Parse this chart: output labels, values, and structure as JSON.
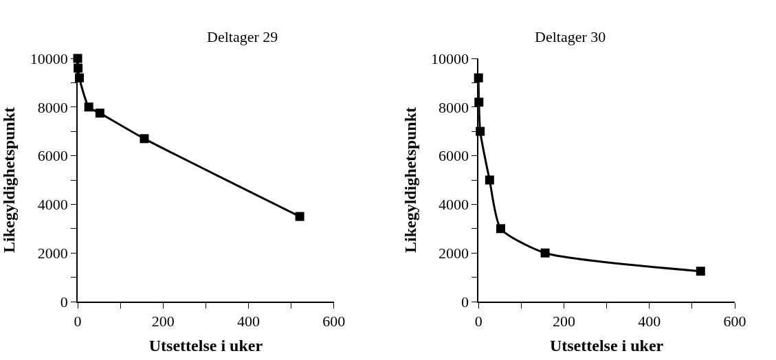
{
  "chart_data": [
    {
      "type": "line",
      "title": "Deltager 29",
      "xlabel": "Utsettelse i uker",
      "ylabel": "Likegyldighetspunkt",
      "x": [
        0,
        1,
        4,
        26,
        52,
        156,
        520
      ],
      "series": [
        {
          "color": "#000000",
          "values": [
            10000,
            9600,
            9200,
            8000,
            7750,
            6700,
            3500
          ]
        }
      ],
      "xlim": [
        0,
        600
      ],
      "xticks": [
        0,
        {
          "value": 100,
          "label": null
        },
        200,
        {
          "value": 300,
          "label": null
        },
        400,
        {
          "value": 500,
          "label": null
        },
        600
      ],
      "ylim": [
        0,
        10000
      ],
      "yticks": [
        0,
        {
          "value": 1000,
          "label": null
        },
        2000,
        {
          "value": 3000,
          "label": null
        },
        4000,
        {
          "value": 5000,
          "label": null
        },
        6000,
        {
          "value": 7000,
          "label": null
        },
        8000,
        {
          "value": 9000,
          "label": null
        },
        10000
      ],
      "marker": "square",
      "line_style": "solid"
    },
    {
      "type": "line",
      "title": "Deltager 30",
      "xlabel": "Utsettelse i uker",
      "ylabel": "Likegyldighetspunkt",
      "x": [
        0,
        1,
        4,
        26,
        52,
        156,
        520
      ],
      "series": [
        {
          "color": "#000000",
          "values": [
            9200,
            8200,
            7000,
            5000,
            3000,
            2000,
            1250
          ]
        }
      ],
      "xlim": [
        0,
        600
      ],
      "xticks": [
        0,
        {
          "value": 100,
          "label": null
        },
        200,
        {
          "value": 300,
          "label": null
        },
        400,
        {
          "value": 500,
          "label": null
        },
        600
      ],
      "ylim": [
        0,
        10000
      ],
      "yticks": [
        0,
        {
          "value": 1000,
          "label": null
        },
        2000,
        {
          "value": 3000,
          "label": null
        },
        4000,
        {
          "value": 5000,
          "label": null
        },
        6000,
        {
          "value": 7000,
          "label": null
        },
        8000,
        {
          "value": 9000,
          "label": null
        },
        10000
      ],
      "marker": "square",
      "line_style": "solid"
    }
  ]
}
